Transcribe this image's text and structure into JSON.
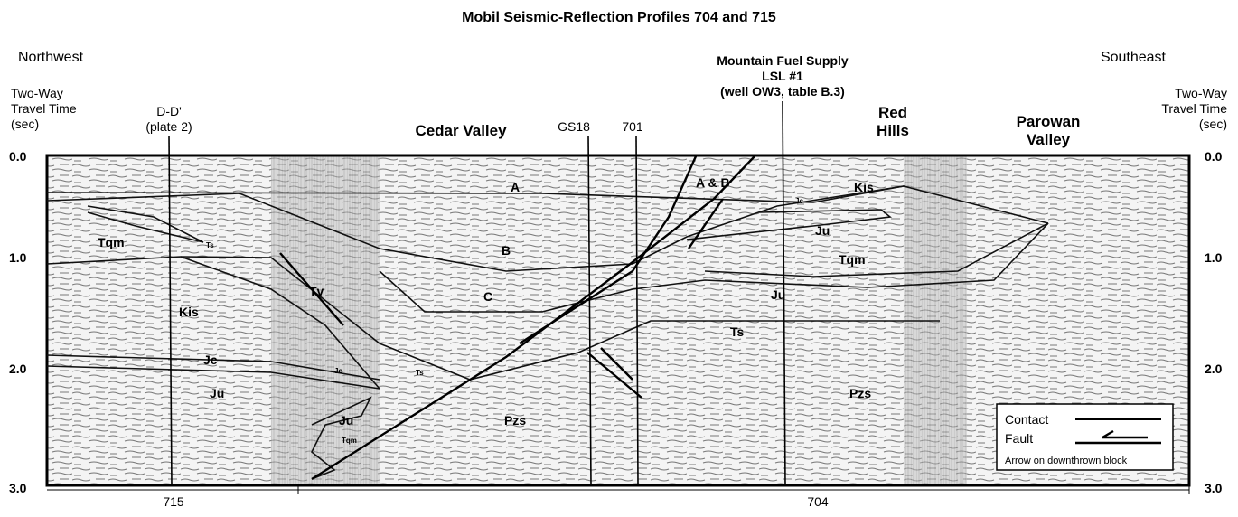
{
  "title": "Mobil Seismic-Reflection Profiles 704 and 715",
  "directions": {
    "left": "Northwest",
    "right": "Southeast"
  },
  "axis_left": {
    "label": [
      "Two-Way",
      "Travel Time",
      "(sec)"
    ],
    "ticks": [
      "0.0",
      "1.0",
      "2.0",
      "3.0"
    ]
  },
  "axis_right": {
    "label": [
      "Two-Way",
      "Travel Time",
      "(sec)"
    ],
    "ticks": [
      "0.0",
      "1.0",
      "2.0",
      "3.0"
    ]
  },
  "markers": {
    "dd": [
      "D-D'",
      "(plate 2)"
    ],
    "cedar_valley": "Cedar Valley",
    "gs18": "GS18",
    "p701": "701",
    "well": [
      "Mountain Fuel Supply",
      "LSL #1",
      "(well OW3, table B.3)"
    ],
    "red_hills": [
      "Red",
      "Hills"
    ],
    "parowan_valley": [
      "Parowan",
      "Valley"
    ]
  },
  "units": [
    "A",
    "A & B",
    "Jc",
    "Kis",
    "Ju",
    "B",
    "Tqm",
    "Ts",
    "Tqm",
    "Tv",
    "Kis",
    "C",
    "Ju",
    "Ts",
    "Jc",
    "Ju",
    "Ts",
    "Jc",
    "Ju",
    "Tqm",
    "Pzs",
    "Pzs"
  ],
  "legend": {
    "contact": "Contact",
    "fault": "Fault",
    "note": "Arrow on downthrown block"
  },
  "profiles": [
    "715",
    "704"
  ]
}
